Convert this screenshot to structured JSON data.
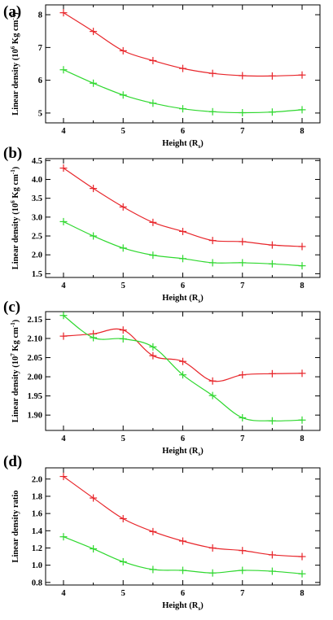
{
  "colors": {
    "red_series": "#e8262b",
    "green_series": "#2fd82f",
    "axis": "#000000"
  },
  "chart_data": [
    {
      "type": "line",
      "panel_label": "(a)",
      "xlabel": "Height (R",
      "xlabel_sub": "s",
      "xlabel_end": ")",
      "ylabel": "Linear density (10",
      "ylabel_sup": "6",
      "ylabel_end": " Kg cm",
      "ylabel_sup2": "-1",
      "ylabel_close": ")",
      "xlim": [
        3.7,
        8.3
      ],
      "ylim": [
        4.7,
        8.3
      ],
      "xticks": [
        4,
        5,
        6,
        7,
        8
      ],
      "yticks": [
        5,
        6,
        7,
        8
      ],
      "ytick_labels": [
        "5",
        "6",
        "7",
        "8"
      ],
      "x": [
        4.0,
        4.5,
        5.0,
        5.5,
        6.0,
        6.5,
        7.0,
        7.5,
        8.0
      ],
      "series": [
        {
          "color": "#e8262b",
          "values": [
            8.06,
            7.49,
            6.9,
            6.6,
            6.36,
            6.21,
            6.14,
            6.13,
            6.16
          ]
        },
        {
          "color": "#2fd82f",
          "values": [
            6.32,
            5.91,
            5.55,
            5.3,
            5.13,
            5.04,
            5.01,
            5.03,
            5.1
          ]
        }
      ]
    },
    {
      "type": "line",
      "panel_label": "(b)",
      "xlabel": "Height (R",
      "xlabel_sub": "s",
      "xlabel_end": ")",
      "ylabel": "Linear density (10",
      "ylabel_sup": "6",
      "ylabel_end": " Kg cm",
      "ylabel_sup2": "-1",
      "ylabel_close": ")",
      "xlim": [
        3.7,
        8.3
      ],
      "ylim": [
        1.4,
        4.55
      ],
      "xticks": [
        4,
        5,
        6,
        7,
        8
      ],
      "yticks": [
        1.5,
        2.0,
        2.5,
        3.0,
        3.5,
        4.0,
        4.5
      ],
      "ytick_labels": [
        "1.5",
        "2.0",
        "2.5",
        "3.0",
        "3.5",
        "4.0",
        "4.5"
      ],
      "x": [
        4.0,
        4.5,
        5.0,
        5.5,
        6.0,
        6.5,
        7.0,
        7.5,
        8.0
      ],
      "series": [
        {
          "color": "#e8262b",
          "values": [
            4.3,
            3.76,
            3.27,
            2.86,
            2.62,
            2.38,
            2.35,
            2.26,
            2.22
          ]
        },
        {
          "color": "#2fd82f",
          "values": [
            2.88,
            2.5,
            2.18,
            1.99,
            1.9,
            1.79,
            1.79,
            1.76,
            1.71
          ]
        }
      ]
    },
    {
      "type": "line",
      "panel_label": "(c)",
      "xlabel": "Height (R",
      "xlabel_sub": "s",
      "xlabel_end": ")",
      "ylabel": "Linear density (10",
      "ylabel_sup": "7",
      "ylabel_end": " Kg cm",
      "ylabel_sup2": "-1",
      "ylabel_close": ")",
      "xlim": [
        3.7,
        8.3
      ],
      "ylim": [
        1.86,
        2.17
      ],
      "xticks": [
        4,
        5,
        6,
        7,
        8
      ],
      "yticks": [
        1.9,
        1.95,
        2.0,
        2.05,
        2.1,
        2.15
      ],
      "ytick_labels": [
        "1.90",
        "1.95",
        "2.00",
        "2.05",
        "2.10",
        "2.15"
      ],
      "x": [
        4.0,
        4.5,
        5.0,
        5.5,
        6.0,
        6.5,
        7.0,
        7.5,
        8.0
      ],
      "series": [
        {
          "color": "#e8262b",
          "values": [
            2.106,
            2.112,
            2.122,
            2.055,
            2.04,
            1.989,
            2.005,
            2.008,
            2.009
          ]
        },
        {
          "color": "#2fd82f",
          "values": [
            2.16,
            2.102,
            2.099,
            2.078,
            2.005,
            1.951,
            1.893,
            1.885,
            1.887
          ]
        }
      ]
    },
    {
      "type": "line",
      "panel_label": "(d)",
      "xlabel": "Height (R",
      "xlabel_sub": "s",
      "xlabel_end": ")",
      "ylabel": "Linear density ratio",
      "ylabel_sup": "",
      "ylabel_end": "",
      "ylabel_sup2": "",
      "ylabel_close": "",
      "xlim": [
        3.7,
        8.3
      ],
      "ylim": [
        0.77,
        2.13
      ],
      "xticks": [
        4,
        5,
        6,
        7,
        8
      ],
      "yticks": [
        0.8,
        1.0,
        1.2,
        1.4,
        1.6,
        1.8,
        2.0
      ],
      "ytick_labels": [
        "0.8",
        "1.0",
        "1.2",
        "1.4",
        "1.6",
        "1.8",
        "2.0"
      ],
      "x": [
        4.0,
        4.5,
        5.0,
        5.5,
        6.0,
        6.5,
        7.0,
        7.5,
        8.0
      ],
      "series": [
        {
          "color": "#e8262b",
          "values": [
            2.03,
            1.78,
            1.54,
            1.39,
            1.28,
            1.2,
            1.17,
            1.12,
            1.1
          ]
        },
        {
          "color": "#2fd82f",
          "values": [
            1.33,
            1.19,
            1.04,
            0.95,
            0.94,
            0.91,
            0.94,
            0.93,
            0.9
          ]
        }
      ]
    }
  ]
}
